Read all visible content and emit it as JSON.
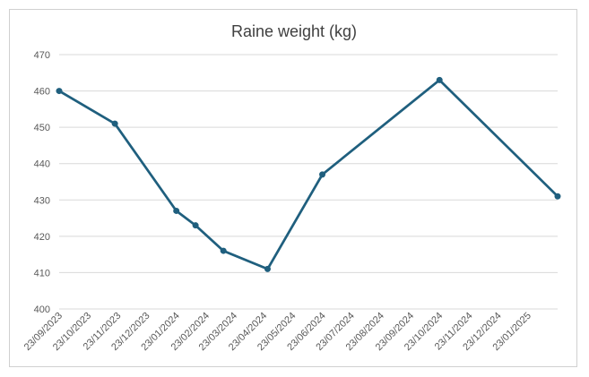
{
  "chart_data": {
    "type": "line",
    "title": "Raine weight (kg)",
    "xlabel": "",
    "ylabel": "",
    "x_axis_type": "date",
    "xlim": [
      "2023-09-23",
      "2025-02-23"
    ],
    "ylim": [
      400,
      470
    ],
    "y_ticks": [
      400,
      410,
      420,
      430,
      440,
      450,
      460,
      470
    ],
    "x_tick_labels": [
      "23/09/2023",
      "23/10/2023",
      "23/11/2023",
      "23/12/2023",
      "23/01/2024",
      "23/02/2024",
      "23/03/2024",
      "23/04/2024",
      "23/05/2024",
      "23/06/2024",
      "23/07/2024",
      "23/08/2024",
      "23/09/2024",
      "23/10/2024",
      "23/11/2024",
      "23/12/2024",
      "23/01/2025"
    ],
    "x_tick_dates": [
      "2023-09-23",
      "2023-10-23",
      "2023-11-23",
      "2023-12-23",
      "2024-01-23",
      "2024-02-23",
      "2024-03-23",
      "2024-04-23",
      "2024-05-23",
      "2024-06-23",
      "2024-07-23",
      "2024-08-23",
      "2024-09-23",
      "2024-10-23",
      "2024-11-23",
      "2024-12-23",
      "2025-01-23"
    ],
    "grid": true,
    "legend": "none",
    "series": [
      {
        "color": "#1f5f7e",
        "x": [
          "2023-09-23",
          "2023-11-20",
          "2024-01-23",
          "2024-02-12",
          "2024-03-12",
          "2024-04-27",
          "2024-06-23",
          "2024-10-23",
          "2025-02-23"
        ],
        "y": [
          460,
          451,
          427,
          423,
          416,
          411,
          437,
          463,
          431
        ]
      }
    ]
  }
}
